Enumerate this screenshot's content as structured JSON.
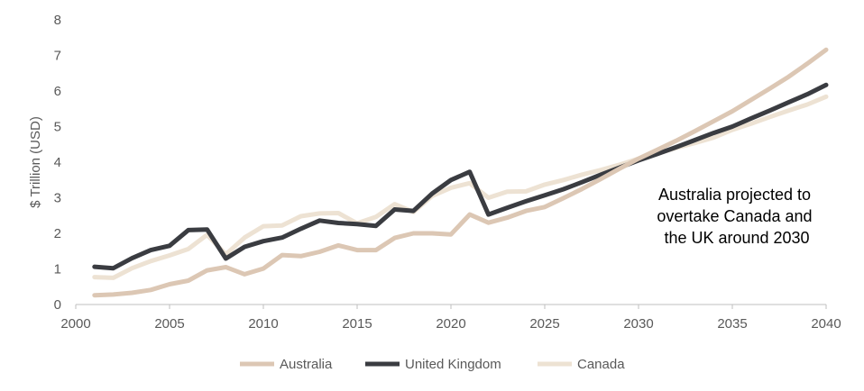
{
  "chart_data": {
    "type": "line",
    "title": "",
    "ylabel": "$ Trillion (USD)",
    "xlabel": "",
    "xlim": [
      2000,
      2040
    ],
    "ylim": [
      0,
      8
    ],
    "x_ticks": [
      "2000",
      "2005",
      "2010",
      "2015",
      "2020",
      "2025",
      "2030",
      "2035",
      "2040"
    ],
    "y_ticks": [
      "0",
      "1",
      "2",
      "3",
      "4",
      "5",
      "6",
      "7",
      "8"
    ],
    "grid": false,
    "legend_position": "bottom",
    "annotation": [
      "Australia projected to",
      "overtake Canada and",
      "the UK around 2030"
    ],
    "series": [
      {
        "name": "Australia",
        "color": "#dcc7b4",
        "x": [
          2001,
          2002,
          2003,
          2004,
          2005,
          2006,
          2007,
          2008,
          2009,
          2010,
          2011,
          2012,
          2013,
          2014,
          2015,
          2016,
          2017,
          2018,
          2019,
          2020,
          2021,
          2022,
          2023,
          2024,
          2025,
          2026,
          2027,
          2028,
          2029,
          2030,
          2031,
          2032,
          2033,
          2034,
          2035,
          2036,
          2037,
          2038,
          2039,
          2040
        ],
        "y": [
          0.26,
          0.28,
          0.33,
          0.41,
          0.57,
          0.67,
          0.96,
          1.05,
          0.85,
          1.01,
          1.39,
          1.36,
          1.48,
          1.66,
          1.53,
          1.53,
          1.87,
          2.0,
          2.0,
          1.97,
          2.53,
          2.3,
          2.44,
          2.63,
          2.74,
          2.99,
          3.25,
          3.53,
          3.82,
          4.1,
          4.35,
          4.6,
          4.87,
          5.15,
          5.43,
          5.75,
          6.07,
          6.4,
          6.77,
          7.16
        ]
      },
      {
        "name": "United Kingdom",
        "color": "#3a3c41",
        "x": [
          2001,
          2002,
          2003,
          2004,
          2005,
          2006,
          2007,
          2008,
          2009,
          2010,
          2011,
          2012,
          2013,
          2014,
          2015,
          2016,
          2017,
          2018,
          2019,
          2020,
          2021,
          2022,
          2023,
          2024,
          2025,
          2026,
          2027,
          2028,
          2029,
          2030,
          2031,
          2032,
          2033,
          2034,
          2035,
          2036,
          2037,
          2038,
          2039,
          2040
        ],
        "y": [
          1.06,
          1.02,
          1.3,
          1.53,
          1.65,
          2.09,
          2.11,
          1.29,
          1.62,
          1.78,
          1.88,
          2.13,
          2.36,
          2.29,
          2.26,
          2.21,
          2.67,
          2.63,
          3.12,
          3.5,
          3.73,
          2.53,
          2.72,
          2.9,
          3.07,
          3.24,
          3.44,
          3.65,
          3.85,
          4.05,
          4.23,
          4.42,
          4.62,
          4.82,
          5.0,
          5.23,
          5.45,
          5.68,
          5.91,
          6.17
        ]
      },
      {
        "name": "Canada",
        "color": "#ede2d3",
        "x": [
          2001,
          2002,
          2003,
          2004,
          2005,
          2006,
          2007,
          2008,
          2009,
          2010,
          2011,
          2012,
          2013,
          2014,
          2015,
          2016,
          2017,
          2018,
          2019,
          2020,
          2021,
          2022,
          2023,
          2024,
          2025,
          2026,
          2027,
          2028,
          2029,
          2030,
          2031,
          2032,
          2033,
          2034,
          2035,
          2036,
          2037,
          2038,
          2039,
          2040
        ],
        "y": [
          0.77,
          0.75,
          1.02,
          1.22,
          1.38,
          1.56,
          1.96,
          1.41,
          1.88,
          2.2,
          2.22,
          2.48,
          2.56,
          2.57,
          2.28,
          2.46,
          2.82,
          2.6,
          3.05,
          3.28,
          3.41,
          3.0,
          3.17,
          3.18,
          3.37,
          3.5,
          3.65,
          3.78,
          3.93,
          4.1,
          4.24,
          4.4,
          4.54,
          4.69,
          4.91,
          5.08,
          5.27,
          5.45,
          5.62,
          5.84
        ]
      }
    ]
  }
}
